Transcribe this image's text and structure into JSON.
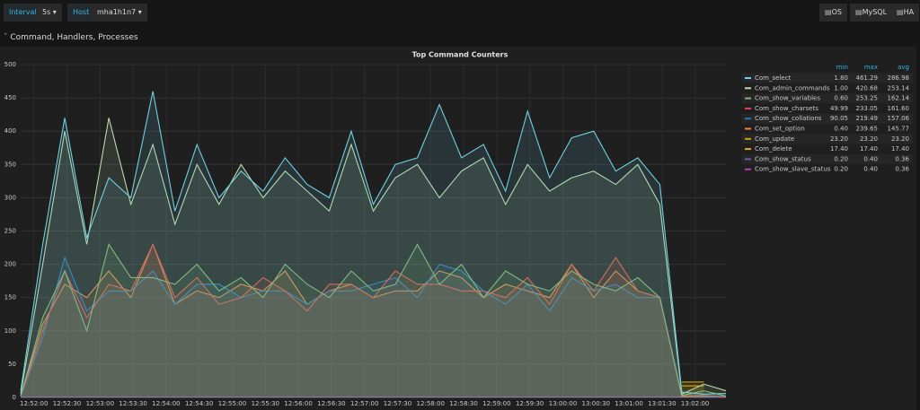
{
  "toolbar": {
    "interval_label": "Interval",
    "interval_value": "5s",
    "host_label": "Host",
    "host_value": "mha1h1n7",
    "buttons": [
      "OS",
      "MySQL",
      "HA"
    ]
  },
  "row_title": "Command, Handlers, Processes",
  "chart_data": {
    "type": "line",
    "title": "Top Command Counters",
    "x": [
      "12:51:48",
      "12:52:08",
      "12:52:28",
      "12:52:48",
      "12:53:08",
      "12:53:28",
      "12:53:48",
      "12:54:08",
      "12:54:28",
      "12:54:48",
      "12:55:08",
      "12:55:28",
      "12:55:48",
      "12:56:08",
      "12:56:28",
      "12:56:48",
      "12:57:08",
      "12:57:28",
      "12:57:48",
      "12:58:08",
      "12:58:28",
      "12:58:48",
      "12:59:08",
      "12:59:28",
      "12:59:48",
      "13:00:08",
      "13:00:28",
      "13:00:48",
      "13:01:08",
      "13:01:28",
      "13:01:48",
      "13:02:08",
      "13:02:28"
    ],
    "xlim": [
      "12:51:48",
      "13:02:28"
    ],
    "xticks": [
      "12:52:00",
      "12:52:30",
      "12:53:00",
      "12:53:30",
      "12:54:00",
      "12:54:30",
      "12:55:00",
      "12:55:30",
      "12:56:00",
      "12:56:30",
      "12:57:00",
      "12:57:30",
      "12:58:00",
      "12:58:30",
      "12:59:00",
      "12:59:30",
      "13:00:00",
      "13:00:30",
      "13:01:00",
      "13:01:30",
      "13:02:00"
    ],
    "ylim": [
      0,
      500
    ],
    "yticks": [
      0,
      50,
      100,
      150,
      200,
      250,
      300,
      350,
      400,
      450,
      500
    ],
    "grid": true,
    "fill_opacity": 0.12,
    "legend_headers": [
      "min",
      "max",
      "avg"
    ],
    "series": [
      {
        "name": "Com_select",
        "color": "#6ed0e0",
        "stats": [
          "1.80",
          "461.29",
          "286.98"
        ],
        "values": [
          10,
          230,
          420,
          240,
          330,
          300,
          460,
          280,
          380,
          300,
          340,
          310,
          360,
          320,
          300,
          400,
          290,
          350,
          360,
          440,
          360,
          380,
          310,
          430,
          330,
          390,
          400,
          340,
          360,
          320,
          8,
          5,
          6
        ]
      },
      {
        "name": "Com_admin_commands",
        "color": "#b7dbab",
        "stats": [
          "1.00",
          "420.68",
          "253.14"
        ],
        "values": [
          5,
          200,
          400,
          230,
          420,
          290,
          380,
          260,
          350,
          290,
          350,
          300,
          340,
          310,
          280,
          380,
          280,
          330,
          350,
          300,
          340,
          360,
          290,
          350,
          310,
          330,
          340,
          320,
          350,
          290,
          5,
          20,
          10
        ]
      },
      {
        "name": "Com_show_variables",
        "color": "#7eb26d",
        "stats": [
          "0.60",
          "253.25",
          "162.14"
        ],
        "values": [
          2,
          120,
          190,
          100,
          230,
          180,
          180,
          170,
          200,
          160,
          180,
          150,
          200,
          170,
          150,
          190,
          160,
          170,
          230,
          170,
          200,
          150,
          190,
          170,
          160,
          190,
          170,
          160,
          180,
          150,
          3,
          10,
          2
        ]
      },
      {
        "name": "Com_show_charsets",
        "color": "#e24d42",
        "stats": [
          "49.99",
          "233.05",
          "161.60"
        ],
        "values": [
          2,
          100,
          190,
          120,
          170,
          160,
          230,
          150,
          180,
          140,
          150,
          180,
          160,
          130,
          170,
          170,
          150,
          190,
          170,
          170,
          160,
          160,
          150,
          180,
          140,
          200,
          160,
          210,
          160,
          150,
          2,
          3,
          1
        ]
      },
      {
        "name": "Com_show_collations",
        "color": "#1f78c1",
        "stats": [
          "90.05",
          "219.49",
          "157.06"
        ],
        "values": [
          2,
          90,
          210,
          130,
          160,
          160,
          190,
          140,
          170,
          170,
          150,
          160,
          160,
          140,
          160,
          160,
          170,
          180,
          150,
          200,
          190,
          160,
          140,
          170,
          130,
          180,
          160,
          170,
          150,
          150,
          2,
          2,
          1
        ]
      },
      {
        "name": "Com_set_option",
        "color": "#ef843c",
        "stats": [
          "0.40",
          "239.65",
          "145.77"
        ],
        "values": [
          2,
          110,
          170,
          150,
          190,
          150,
          230,
          140,
          160,
          150,
          170,
          160,
          190,
          140,
          160,
          170,
          150,
          160,
          160,
          190,
          180,
          150,
          170,
          160,
          150,
          200,
          150,
          190,
          160,
          150,
          1,
          2,
          1
        ]
      },
      {
        "name": "Com_update",
        "color": "#cca300",
        "stats": [
          "23.20",
          "23.20",
          "23.20"
        ],
        "values": [
          null,
          null,
          null,
          null,
          null,
          null,
          null,
          null,
          null,
          null,
          null,
          null,
          null,
          null,
          null,
          null,
          null,
          null,
          null,
          null,
          null,
          null,
          null,
          null,
          null,
          null,
          null,
          null,
          null,
          null,
          23.2,
          23.2,
          null
        ]
      },
      {
        "name": "Com_delete",
        "color": "#e5ac0e",
        "stats": [
          "17.40",
          "17.40",
          "17.40"
        ],
        "values": [
          null,
          null,
          null,
          null,
          null,
          null,
          null,
          null,
          null,
          null,
          null,
          null,
          null,
          null,
          null,
          null,
          null,
          null,
          null,
          null,
          null,
          null,
          null,
          null,
          null,
          null,
          null,
          null,
          null,
          null,
          17.4,
          17.4,
          null
        ]
      },
      {
        "name": "Com_show_status",
        "color": "#705da0",
        "stats": [
          "0.20",
          "0.40",
          "0.36"
        ],
        "values": [
          0.2,
          0.4,
          0.4,
          0.4,
          0.4,
          0.4,
          0.4,
          0.4,
          0.4,
          0.4,
          0.4,
          0.4,
          0.4,
          0.4,
          0.4,
          0.4,
          0.4,
          0.4,
          0.4,
          0.4,
          0.4,
          0.4,
          0.4,
          0.4,
          0.4,
          0.4,
          0.4,
          0.4,
          0.4,
          0.4,
          0.4,
          0.2,
          0.2
        ]
      },
      {
        "name": "Com_show_slave_status",
        "color": "#ba43a9",
        "stats": [
          "0.20",
          "0.40",
          "0.36"
        ],
        "values": [
          0.2,
          0.4,
          0.4,
          0.4,
          0.4,
          0.4,
          0.4,
          0.4,
          0.4,
          0.4,
          0.4,
          0.4,
          0.4,
          0.4,
          0.4,
          0.4,
          0.4,
          0.4,
          0.4,
          0.4,
          0.4,
          0.4,
          0.4,
          0.4,
          0.4,
          0.4,
          0.4,
          0.4,
          0.4,
          0.4,
          0.4,
          0.2,
          0.2
        ]
      }
    ]
  }
}
